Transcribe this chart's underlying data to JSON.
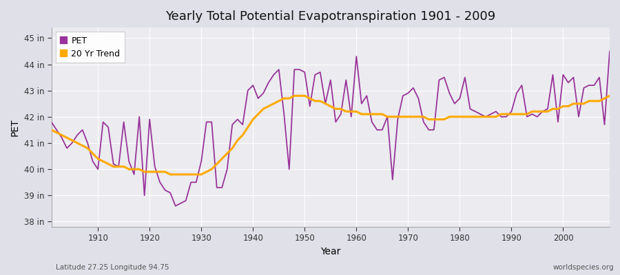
{
  "title": "Yearly Total Potential Evapotranspiration 1901 - 2009",
  "xlabel": "Year",
  "ylabel": "PET",
  "subtitle_left": "Latitude 27.25 Longitude 94.75",
  "subtitle_right": "worldspecies.org",
  "pet_color": "#993399",
  "trend_color": "#ffaa00",
  "fig_bg_color": "#e0e0e8",
  "plot_bg_color": "#ebebf0",
  "ylim": [
    37.8,
    45.4
  ],
  "xlim": [
    1901,
    2009
  ],
  "yticks": [
    38,
    39,
    40,
    41,
    42,
    43,
    44,
    45
  ],
  "ytick_labels": [
    "38 in",
    "39 in",
    "40 in",
    "41 in",
    "42 in",
    "43 in",
    "44 in",
    "45 in"
  ],
  "xticks": [
    1910,
    1920,
    1930,
    1940,
    1950,
    1960,
    1970,
    1980,
    1990,
    2000
  ],
  "years": [
    1901,
    1902,
    1903,
    1904,
    1905,
    1906,
    1907,
    1908,
    1909,
    1910,
    1911,
    1912,
    1913,
    1914,
    1915,
    1916,
    1917,
    1918,
    1919,
    1920,
    1921,
    1922,
    1923,
    1924,
    1925,
    1926,
    1927,
    1928,
    1929,
    1930,
    1931,
    1932,
    1933,
    1934,
    1935,
    1936,
    1937,
    1938,
    1939,
    1940,
    1941,
    1942,
    1943,
    1944,
    1945,
    1946,
    1947,
    1948,
    1949,
    1950,
    1951,
    1952,
    1953,
    1954,
    1955,
    1956,
    1957,
    1958,
    1959,
    1960,
    1961,
    1962,
    1963,
    1964,
    1965,
    1966,
    1967,
    1968,
    1969,
    1970,
    1971,
    1972,
    1973,
    1974,
    1975,
    1976,
    1977,
    1978,
    1979,
    1980,
    1981,
    1982,
    1983,
    1984,
    1985,
    1986,
    1987,
    1988,
    1989,
    1990,
    1991,
    1992,
    1993,
    1994,
    1995,
    1996,
    1997,
    1998,
    1999,
    2000,
    2001,
    2002,
    2003,
    2004,
    2005,
    2006,
    2007,
    2008,
    2009
  ],
  "pet_values": [
    41.8,
    41.5,
    41.2,
    40.8,
    41.0,
    41.3,
    41.5,
    41.0,
    40.3,
    40.0,
    41.8,
    41.6,
    40.2,
    40.1,
    41.8,
    40.3,
    39.8,
    42.0,
    39.0,
    41.9,
    40.1,
    39.5,
    39.2,
    39.1,
    38.6,
    38.7,
    38.8,
    39.5,
    39.5,
    40.3,
    41.8,
    41.8,
    39.3,
    39.3,
    40.0,
    41.7,
    41.9,
    41.7,
    43.0,
    43.2,
    42.7,
    42.9,
    43.3,
    43.6,
    43.8,
    42.1,
    40.0,
    43.8,
    43.8,
    43.7,
    42.4,
    43.6,
    43.7,
    42.5,
    43.4,
    41.8,
    42.1,
    43.4,
    42.0,
    44.3,
    42.5,
    42.8,
    41.8,
    41.5,
    41.5,
    42.0,
    39.6,
    41.9,
    42.8,
    42.9,
    43.1,
    42.7,
    41.8,
    41.5,
    41.5,
    43.4,
    43.5,
    42.9,
    42.5,
    42.7,
    43.5,
    42.3,
    42.2,
    42.1,
    42.0,
    42.1,
    42.2,
    42.0,
    42.0,
    42.2,
    42.9,
    43.2,
    42.0,
    42.1,
    42.0,
    42.2,
    42.3,
    43.6,
    41.8,
    43.6,
    43.3,
    43.5,
    42.0,
    43.1,
    43.2,
    43.2,
    43.5,
    41.7,
    44.5
  ],
  "trend_values": [
    41.5,
    41.4,
    41.3,
    41.2,
    41.1,
    41.0,
    40.9,
    40.8,
    40.6,
    40.4,
    40.3,
    40.2,
    40.1,
    40.1,
    40.1,
    40.0,
    40.0,
    40.0,
    39.9,
    39.9,
    39.9,
    39.9,
    39.9,
    39.8,
    39.8,
    39.8,
    39.8,
    39.8,
    39.8,
    39.8,
    39.9,
    40.0,
    40.2,
    40.4,
    40.6,
    40.8,
    41.1,
    41.3,
    41.6,
    41.9,
    42.1,
    42.3,
    42.4,
    42.5,
    42.6,
    42.7,
    42.7,
    42.8,
    42.8,
    42.8,
    42.7,
    42.6,
    42.6,
    42.5,
    42.4,
    42.3,
    42.3,
    42.2,
    42.2,
    42.2,
    42.1,
    42.1,
    42.1,
    42.1,
    42.1,
    42.0,
    42.0,
    42.0,
    42.0,
    42.0,
    42.0,
    42.0,
    42.0,
    41.9,
    41.9,
    41.9,
    41.9,
    42.0,
    42.0,
    42.0,
    42.0,
    42.0,
    42.0,
    42.0,
    42.0,
    42.0,
    42.0,
    42.1,
    42.1,
    42.1,
    42.1,
    42.1,
    42.1,
    42.2,
    42.2,
    42.2,
    42.2,
    42.3,
    42.3,
    42.4,
    42.4,
    42.5,
    42.5,
    42.5,
    42.6,
    42.6,
    42.6,
    42.7,
    42.8
  ]
}
